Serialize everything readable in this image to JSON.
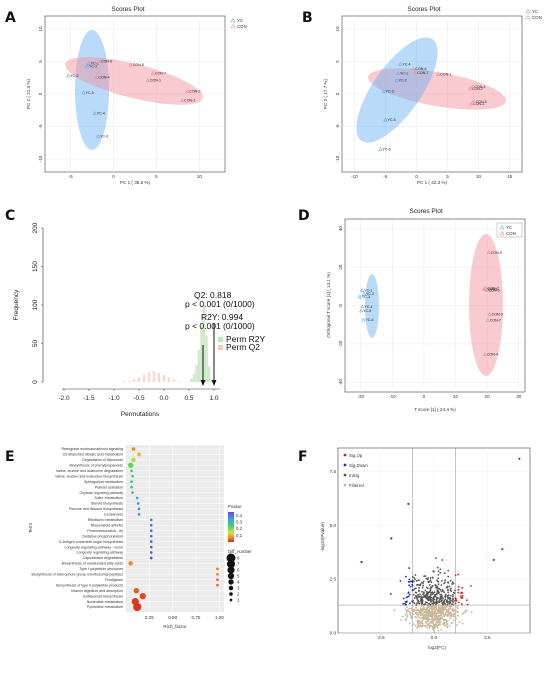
{
  "panels": {
    "A": {
      "letter": "A",
      "title": "Scores Plot",
      "xlabel": "PC 1 ( 38.5 %)",
      "ylabel": "PC 2 ( 21.4 %)",
      "xticks": [
        "-5",
        "0",
        "5",
        "10"
      ],
      "yticks": [
        "10",
        "5",
        "0",
        "-5",
        "-10"
      ],
      "legend": [
        "YC",
        "CON"
      ]
    },
    "B": {
      "letter": "B",
      "title": "Scores Plot",
      "xlabel": "PC 1 ( 42.3 %)",
      "ylabel": "PC 2 ( 17.7 %)",
      "xticks": [
        "-10",
        "-5",
        "0",
        "5",
        "10",
        "15"
      ],
      "yticks": [
        "10",
        "5",
        "0",
        "-5",
        "-10"
      ],
      "legend": [
        "YC",
        "CON"
      ]
    },
    "C": {
      "letter": "C",
      "xlabel": "Permutations",
      "ylabel": "Frequency",
      "xticks": [
        "-2.0",
        "-1.5",
        "-1.0",
        "-0.5",
        "0.0",
        "0.5",
        "1.0"
      ],
      "yticks": [
        "0",
        "50",
        "100",
        "150",
        "200"
      ],
      "q2_line1": "Q2: 0.818",
      "q2_line2": "p < 0.001 (0/1000)",
      "r2y_line1": "R2Y: 0.994",
      "r2y_line2": "p < 0.001 (0/1000)",
      "legend": [
        "Perm R2Y",
        "Perm Q2"
      ]
    },
    "D": {
      "letter": "D",
      "title": "Scores Plot",
      "xlabel": "T score [1] ( 24.4 %)",
      "ylabel": "Orthogonal T score [1] ( 14.1 %)",
      "xticks": [
        "-20",
        "-10",
        "0",
        "10",
        "20",
        "30"
      ],
      "yticks": [
        "40",
        "20",
        "0",
        "-20",
        "-40"
      ],
      "legend": [
        "YC",
        "CON"
      ]
    },
    "E": {
      "letter": "E",
      "xlabel": "Rich_factor",
      "ylabel": "Term",
      "xticks": [
        "0.25",
        "0.50",
        "0.75",
        "1.00"
      ],
      "pvalue_title": "Pvalue",
      "pvalue_ticks": [
        "0.4",
        "0.3",
        "0.2",
        "0.1"
      ],
      "diff_title": "Diff_number",
      "diff_values": [
        "8",
        "7",
        "6",
        "5",
        "4",
        "3",
        "2",
        "1"
      ]
    },
    "F": {
      "letter": "F",
      "xlabel": "log2(FC)",
      "ylabel": "-log10(Pvalue)",
      "xticks": [
        "-2.5",
        "0.0",
        "2.5"
      ],
      "yticks": [
        "7.5",
        "5.0",
        "2.5",
        "0.0"
      ],
      "legend": [
        "Sig.Up",
        "Sig.Down",
        "InSig",
        "Filtered"
      ]
    }
  },
  "colors": {
    "yc": "#63aef0",
    "con": "#f28c98",
    "up": "#cc2222",
    "down": "#2233bb",
    "insig": "#555555",
    "filtered": "#c9b79c"
  },
  "chart_data": [
    {
      "panel": "A",
      "type": "scatter",
      "title": "Scores Plot",
      "xlabel": "PC 1 ( 38.5 %)",
      "ylabel": "PC 2 ( 21.4 %)",
      "xlim": [
        -8,
        13
      ],
      "ylim": [
        -12,
        12
      ],
      "grid": true,
      "legend_position": "top-right",
      "series": [
        {
          "name": "YC",
          "points": [
            {
              "label": "YC-1",
              "x": -2.9,
              "y": 4.7
            },
            {
              "label": "YC-2",
              "x": -3.1,
              "y": 4.3
            },
            {
              "label": "YC-3",
              "x": -5.3,
              "y": 2.8
            },
            {
              "label": "YC-4",
              "x": -2.2,
              "y": -3.0
            },
            {
              "label": "YC-5",
              "x": -3.5,
              "y": 0.2
            },
            {
              "label": "YC-6",
              "x": -1.8,
              "y": -6.5
            }
          ]
        },
        {
          "name": "CON",
          "points": [
            {
              "label": "CON-1",
              "x": 4.0,
              "y": 2.1
            },
            {
              "label": "CON-2",
              "x": 8.0,
              "y": -1.0
            },
            {
              "label": "CON-3",
              "x": 8.6,
              "y": 0.4
            },
            {
              "label": "CON-4",
              "x": -2.0,
              "y": 2.6
            },
            {
              "label": "CON-5",
              "x": 2.0,
              "y": 4.5
            },
            {
              "label": "CON-6",
              "x": -1.7,
              "y": 5.0
            },
            {
              "label": "CON-7",
              "x": 4.6,
              "y": 3.2
            }
          ]
        }
      ]
    },
    {
      "panel": "B",
      "type": "scatter",
      "title": "Scores Plot",
      "xlabel": "PC 1 ( 42.3 %)",
      "ylabel": "PC 2 ( 17.7 %)",
      "xlim": [
        -12,
        17
      ],
      "ylim": [
        -12,
        12
      ],
      "grid": true,
      "legend_position": "top-right",
      "series": [
        {
          "name": "YC",
          "points": [
            {
              "label": "YC-1",
              "x": -3.0,
              "y": 3.2
            },
            {
              "label": "YC-2",
              "x": -3.2,
              "y": 2.1
            },
            {
              "label": "YC-3",
              "x": -5.3,
              "y": 0.4
            },
            {
              "label": "YC-4",
              "x": -2.6,
              "y": 4.6
            },
            {
              "label": "YC-5",
              "x": -5.0,
              "y": -4.0
            },
            {
              "label": "YC-6",
              "x": -5.8,
              "y": -8.5
            }
          ]
        },
        {
          "name": "CON",
          "points": [
            {
              "label": "CON-1",
              "x": 3.5,
              "y": 3.0
            },
            {
              "label": "CON-2",
              "x": 8.6,
              "y": 0.8
            },
            {
              "label": "CON-3",
              "x": 8.8,
              "y": -1.5
            },
            {
              "label": "CON-4",
              "x": 9.0,
              "y": 1.1
            },
            {
              "label": "CON-5",
              "x": 9.2,
              "y": -1.2
            },
            {
              "label": "CON-6",
              "x": -0.5,
              "y": 3.9
            },
            {
              "label": "CON-7",
              "x": -0.2,
              "y": 3.3
            }
          ]
        }
      ]
    },
    {
      "panel": "C",
      "type": "bar",
      "title": "",
      "xlabel": "Permutations",
      "ylabel": "Frequency",
      "xlim": [
        -2.1,
        1.05
      ],
      "ylim": [
        0,
        200
      ],
      "legend_position": "right",
      "series": [
        {
          "name": "Perm R2Y",
          "x": [
            0.55,
            0.6,
            0.65,
            0.7,
            0.75,
            0.8,
            0.85,
            0.9
          ],
          "values": [
            4,
            10,
            22,
            42,
            75,
            100,
            60,
            20
          ]
        },
        {
          "name": "Perm Q2",
          "x": [
            -0.8,
            -0.7,
            -0.6,
            -0.5,
            -0.4,
            -0.3,
            -0.2,
            -0.1,
            0.0,
            0.1,
            0.2,
            0.3
          ],
          "values": [
            1,
            2,
            4,
            6,
            9,
            12,
            14,
            12,
            9,
            6,
            3,
            1
          ]
        }
      ],
      "observed": [
        {
          "name": "Q2",
          "value": 0.818
        },
        {
          "name": "R2Y",
          "value": 0.994
        }
      ]
    },
    {
      "panel": "D",
      "type": "scatter",
      "title": "Scores Plot",
      "xlabel": "T score [1] ( 24.4 %)",
      "ylabel": "Orthogonal T score [1] ( 14.1 %)",
      "xlim": [
        -25,
        32
      ],
      "ylim": [
        -45,
        45
      ],
      "grid": true,
      "legend_position": "top-right",
      "series": [
        {
          "name": "YC",
          "points": [
            {
              "label": "YC-1",
              "x": -19.6,
              "y": 7.8
            },
            {
              "label": "YC-2",
              "x": -19.0,
              "y": 6.0
            },
            {
              "label": "YC-3",
              "x": -20.3,
              "y": 4.5
            },
            {
              "label": "YC-4",
              "x": -19.5,
              "y": -0.6
            },
            {
              "label": "YC-5",
              "x": -19.9,
              "y": -2.7
            },
            {
              "label": "YC-6",
              "x": -19.2,
              "y": -7.5
            }
          ]
        },
        {
          "name": "CON",
          "points": [
            {
              "label": "CON-1",
              "x": 19.0,
              "y": 8.5
            },
            {
              "label": "CON-2",
              "x": 19.5,
              "y": 9.0
            },
            {
              "label": "CON-3",
              "x": 20.8,
              "y": -4.5
            },
            {
              "label": "CON-4",
              "x": 19.3,
              "y": -25.5
            },
            {
              "label": "CON-5",
              "x": 20.5,
              "y": 27.5
            },
            {
              "label": "CON-6",
              "x": 19.8,
              "y": 8.0
            },
            {
              "label": "CON-7",
              "x": 20.2,
              "y": -7.6
            }
          ]
        }
      ]
    },
    {
      "panel": "E",
      "type": "scatter",
      "xlabel": "Rich_factor",
      "ylabel": "Term",
      "xlim": [
        0,
        1.05
      ],
      "legend": [
        "Pvalue",
        "Diff_number"
      ],
      "terms": [
        {
          "term": "Retrograde endocannabinoid signaling",
          "x": 0.08,
          "p": 0.06,
          "n": 2
        },
        {
          "term": "C5-Branched dibasic acid metabolism",
          "x": 0.14,
          "p": 0.09,
          "n": 2
        },
        {
          "term": "Degradation of flavonoids",
          "x": 0.08,
          "p": 0.14,
          "n": 3
        },
        {
          "term": "Biosynthesis of phenylpropanoids",
          "x": 0.05,
          "p": 0.2,
          "n": 4
        },
        {
          "term": "Valine, leucine and isoleucine degradation",
          "x": 0.06,
          "p": 0.22,
          "n": 1
        },
        {
          "term": "Valine, leucine and isoleucine biosynthesis",
          "x": 0.07,
          "p": 0.22,
          "n": 1
        },
        {
          "term": "Sphingolipid metabolism",
          "x": 0.06,
          "p": 0.24,
          "n": 1
        },
        {
          "term": "Platelet activation",
          "x": 0.06,
          "p": 0.26,
          "n": 1
        },
        {
          "term": "Oxytocin signaling pathway",
          "x": 0.07,
          "p": 0.28,
          "n": 1
        },
        {
          "term": "Sulfur metabolism",
          "x": 0.12,
          "p": 0.32,
          "n": 1
        },
        {
          "term": "Steroid biosynthesis",
          "x": 0.13,
          "p": 0.34,
          "n": 1
        },
        {
          "term": "Flavone and flavonol biosynthesis",
          "x": 0.14,
          "p": 0.35,
          "n": 1
        },
        {
          "term": "Ecosanoids",
          "x": 0.14,
          "p": 0.36,
          "n": 1
        },
        {
          "term": "Riboflavin metabolism",
          "x": 0.27,
          "p": 0.38,
          "n": 1
        },
        {
          "term": "Rheumatoid arthritis",
          "x": 0.27,
          "p": 0.39,
          "n": 1
        },
        {
          "term": "Phototransduction - fly",
          "x": 0.27,
          "p": 0.4,
          "n": 1
        },
        {
          "term": "Oxidative phosphorylation",
          "x": 0.27,
          "p": 0.41,
          "n": 1
        },
        {
          "term": "O-Antigen nucleotide sugar biosynthesis",
          "x": 0.27,
          "p": 0.42,
          "n": 1
        },
        {
          "term": "Longevity regulating pathway - worm",
          "x": 0.27,
          "p": 0.43,
          "n": 1
        },
        {
          "term": "Longevity regulating pathway",
          "x": 0.27,
          "p": 0.44,
          "n": 1
        },
        {
          "term": "Caprolactam degradation",
          "x": 0.27,
          "p": 0.45,
          "n": 1
        },
        {
          "term": "Biosynthesis of unsaturated fatty acids",
          "x": 0.05,
          "p": 0.06,
          "n": 3
        },
        {
          "term": "Type I polyketide structures",
          "x": 0.98,
          "p": 0.05,
          "n": 1
        },
        {
          "term": "Biosynthesis of siderophore group nonribosomal peptides",
          "x": 0.98,
          "p": 0.05,
          "n": 1
        },
        {
          "term": "Prodigiosin",
          "x": 0.98,
          "p": 0.04,
          "n": 1
        },
        {
          "term": "Biosynthesis of type II polyketide products",
          "x": 0.98,
          "p": 0.04,
          "n": 1
        },
        {
          "term": "Vitamin digestion and absorption",
          "x": 0.11,
          "p": 0.03,
          "n": 4
        },
        {
          "term": "Isoflavonoid biosynthesis",
          "x": 0.18,
          "p": 0.02,
          "n": 5
        },
        {
          "term": "Nucleotide metabolism",
          "x": 0.1,
          "p": 0.01,
          "n": 6
        },
        {
          "term": "Pyrimidine metabolism",
          "x": 0.12,
          "p": 0.005,
          "n": 7
        }
      ]
    },
    {
      "panel": "F",
      "type": "scatter",
      "xlabel": "log2(FC)",
      "ylabel": "-log10(Pvalue)",
      "xlim": [
        -4.5,
        4.5
      ],
      "ylim": [
        0,
        8.6
      ],
      "thresholds": {
        "log2fc": [
          -1,
          1
        ],
        "pvalue_line": 1.3
      },
      "legend": [
        "Sig.Up",
        "Sig.Down",
        "InSig",
        "Filtered"
      ],
      "highlighted_points": [
        {
          "group": "Sig.Up",
          "x": 4.0,
          "y": 8.1
        },
        {
          "group": "Sig.Up",
          "x": 3.2,
          "y": 3.9
        },
        {
          "group": "Sig.Up",
          "x": 2.8,
          "y": 3.4
        },
        {
          "group": "Sig.Down",
          "x": -1.2,
          "y": 6.0
        },
        {
          "group": "Sig.Down",
          "x": -3.4,
          "y": 3.3
        },
        {
          "group": "Sig.Down",
          "x": -2.0,
          "y": 4.4
        }
      ]
    }
  ]
}
